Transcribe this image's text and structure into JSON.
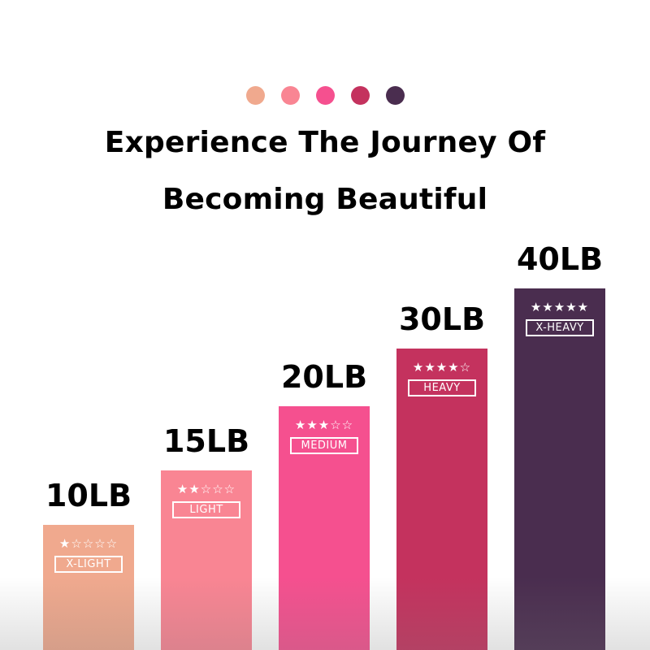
{
  "header": {
    "title_line1": "Experience The Journey Of",
    "title_line2": "Becoming Beautiful"
  },
  "chart_data": {
    "type": "bar",
    "title": "Experience The Journey Of Becoming Beautiful",
    "categories": [
      "10LB",
      "15LB",
      "20LB",
      "30LB",
      "40LB"
    ],
    "values": [
      10,
      15,
      20,
      30,
      40
    ],
    "unit": "LB",
    "levels": [
      "X-LIGHT",
      "LIGHT",
      "MEDIUM",
      "HEAVY",
      "X-HEAVY"
    ],
    "star_ratings": [
      1,
      2,
      3,
      4,
      5
    ],
    "star_max": 5,
    "colors": [
      "#f0a98e",
      "#f98593",
      "#f5508f",
      "#c4325e",
      "#4a2d4f"
    ],
    "grid": false,
    "legend": "none"
  }
}
